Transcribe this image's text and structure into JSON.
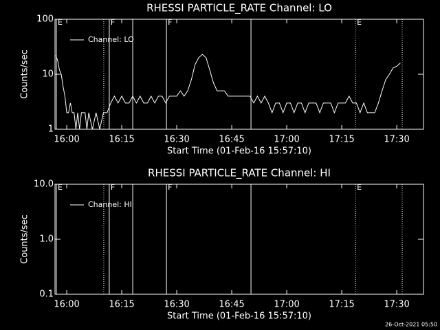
{
  "chart_data": [
    {
      "type": "line",
      "title": "RHESSI PARTICLE_RATE Channel: LO",
      "xlabel": "Start Time (01-Feb-16 15:57:10)",
      "ylabel": "Counts/sec",
      "xlim": [
        956.8,
        1057.3
      ],
      "xticks": [
        {
          "value": 960,
          "label": "16:00"
        },
        {
          "value": 975,
          "label": "16:15"
        },
        {
          "value": 990,
          "label": "16:30"
        },
        {
          "value": 1005,
          "label": "16:45"
        },
        {
          "value": 1020,
          "label": "17:00"
        },
        {
          "value": 1035,
          "label": "17:15"
        },
        {
          "value": 1050,
          "label": "17:30"
        }
      ],
      "ylim": [
        1,
        100
      ],
      "yticks": [
        1,
        10,
        100
      ],
      "log_y": true,
      "series": [
        {
          "name": "Channel: LO",
          "color": "#ffffff",
          "x": [
            957,
            957.5,
            958,
            958.5,
            959,
            959.5,
            960,
            960.5,
            961,
            961.5,
            962,
            962.5,
            963,
            963.5,
            964,
            965,
            965.5,
            966,
            967,
            968,
            969,
            970,
            971,
            972,
            973,
            974,
            975,
            976,
            977,
            978,
            979,
            980,
            981,
            982,
            983,
            984,
            985,
            986,
            987,
            988,
            989,
            990,
            991,
            992,
            993,
            994,
            995,
            996,
            997,
            998,
            999,
            1000,
            1001,
            1002,
            1003,
            1004,
            1005,
            1006,
            1007,
            1008,
            1009,
            1010,
            1011,
            1012,
            1013,
            1014,
            1015,
            1016,
            1017,
            1018,
            1019,
            1020,
            1021,
            1022,
            1023,
            1024,
            1025,
            1026,
            1027,
            1028,
            1029,
            1030,
            1031,
            1032,
            1033,
            1034,
            1035,
            1036,
            1037,
            1038,
            1039,
            1040,
            1041,
            1042,
            1043,
            1044,
            1045,
            1046,
            1047,
            1048,
            1049,
            1050,
            1051
          ],
          "values": [
            22,
            18,
            12,
            10,
            6,
            4,
            2,
            2,
            3,
            2,
            2,
            1,
            2,
            1,
            2,
            2,
            1,
            2,
            1,
            2,
            1,
            2,
            2,
            3,
            4,
            3,
            4,
            3,
            3,
            4,
            3,
            4,
            3,
            3,
            4,
            3,
            4,
            4,
            3,
            4,
            4,
            4,
            5,
            4,
            5,
            8,
            15,
            20,
            23,
            20,
            12,
            7,
            5,
            5,
            5,
            4,
            4,
            4,
            4,
            4,
            4,
            4,
            3,
            4,
            3,
            4,
            3,
            2,
            3,
            3,
            2,
            3,
            3,
            2,
            3,
            3,
            2,
            3,
            3,
            3,
            2,
            3,
            3,
            3,
            2,
            3,
            3,
            3,
            4,
            3,
            3,
            2,
            3,
            2,
            2,
            2,
            3,
            5,
            8,
            10,
            13,
            14,
            16
          ]
        }
      ],
      "vlines": [
        {
          "x": 957.17,
          "style": "solid",
          "label": "E"
        },
        {
          "x": 970.1,
          "style": "dotted"
        },
        {
          "x": 971.6,
          "style": "solid",
          "label": "F"
        },
        {
          "x": 978.0,
          "style": "solid"
        },
        {
          "x": 987.2,
          "style": "solid",
          "label": "F"
        },
        {
          "x": 1010.25,
          "style": "solid"
        },
        {
          "x": 1038.75,
          "style": "dotted",
          "label": "E"
        },
        {
          "x": 1051.5,
          "style": "dotted"
        }
      ]
    },
    {
      "type": "line",
      "title": "RHESSI PARTICLE_RATE Channel: HI",
      "xlabel": "Start Time (01-Feb-16 15:57:10)",
      "ylabel": "Counts/sec",
      "xlim": [
        956.8,
        1057.3
      ],
      "xticks": [
        {
          "value": 960,
          "label": "16:00"
        },
        {
          "value": 975,
          "label": "16:15"
        },
        {
          "value": 990,
          "label": "16:30"
        },
        {
          "value": 1005,
          "label": "16:45"
        },
        {
          "value": 1020,
          "label": "17:00"
        },
        {
          "value": 1035,
          "label": "17:15"
        },
        {
          "value": 1050,
          "label": "17:30"
        }
      ],
      "ylim": [
        0.1,
        10
      ],
      "yticks": [
        0.1,
        {
          "value": 1,
          "label": "1.0"
        },
        {
          "value": 10,
          "label": "10.0"
        }
      ],
      "log_y": true,
      "series": [
        {
          "name": "Channel: HI",
          "color": "#ffffff",
          "x": [],
          "values": []
        }
      ],
      "vlines": [
        {
          "x": 957.17,
          "style": "solid",
          "label": "E"
        },
        {
          "x": 970.1,
          "style": "dotted"
        },
        {
          "x": 971.6,
          "style": "solid",
          "label": "F"
        },
        {
          "x": 978.0,
          "style": "solid"
        },
        {
          "x": 987.2,
          "style": "solid",
          "label": "F"
        },
        {
          "x": 1010.25,
          "style": "solid"
        },
        {
          "x": 1038.75,
          "style": "dotted",
          "label": "E"
        },
        {
          "x": 1051.5,
          "style": "dotted"
        }
      ]
    }
  ],
  "timestamp": "26-Oct-2021 05:50"
}
